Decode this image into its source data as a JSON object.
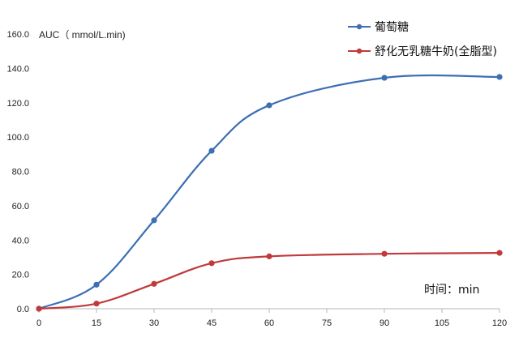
{
  "chart_data": {
    "type": "line",
    "ylabel": "AUC（ mmol/L.min)",
    "xlabel": "时间：min",
    "ylim": [
      0,
      160
    ],
    "xlim": [
      0,
      120
    ],
    "yticks": [
      "0.0",
      "20.0",
      "40.0",
      "60.0",
      "80.0",
      "100.0",
      "120.0",
      "140.0",
      "160.0"
    ],
    "xticks": [
      "0",
      "15",
      "30",
      "45",
      "60",
      "75",
      "90",
      "105",
      "120"
    ],
    "grid": false,
    "legend_position": "top-right",
    "series": [
      {
        "name": "葡萄糖",
        "color": "#3c6fb4",
        "x": [
          0,
          15,
          30,
          45,
          60,
          90,
          120
        ],
        "values": [
          0.0,
          14.0,
          51.5,
          92.0,
          118.5,
          134.5,
          135.0
        ]
      },
      {
        "name": "舒化无乳糖牛奶(全脂型)",
        "color": "#c0393b",
        "x": [
          0,
          15,
          30,
          45,
          60,
          90,
          120
        ],
        "values": [
          0.0,
          3.0,
          14.5,
          26.5,
          30.5,
          32.0,
          32.5
        ]
      }
    ]
  }
}
